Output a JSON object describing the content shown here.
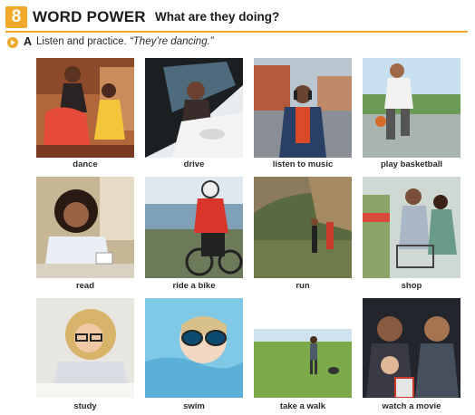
{
  "header": {
    "number": "8",
    "title": "WORD POWER",
    "subtitle": "What are they doing?",
    "accent_color": "#f0a92b"
  },
  "exercise": {
    "icon": "audio-play-icon",
    "letter": "A",
    "instruction": "Listen and practice.",
    "example": "“They’re dancing.”"
  },
  "activities": [
    {
      "id": "dance",
      "label": "dance"
    },
    {
      "id": "drive",
      "label": "drive"
    },
    {
      "id": "listen-to-music",
      "label": "listen to music"
    },
    {
      "id": "play-basketball",
      "label": "play basketball"
    },
    {
      "id": "read",
      "label": "read"
    },
    {
      "id": "ride-a-bike",
      "label": "ride a bike"
    },
    {
      "id": "run",
      "label": "run"
    },
    {
      "id": "shop",
      "label": "shop"
    },
    {
      "id": "study",
      "label": "study"
    },
    {
      "id": "swim",
      "label": "swim"
    },
    {
      "id": "take-a-walk",
      "label": "take a walk"
    },
    {
      "id": "watch-a-movie",
      "label": "watch a movie"
    }
  ]
}
